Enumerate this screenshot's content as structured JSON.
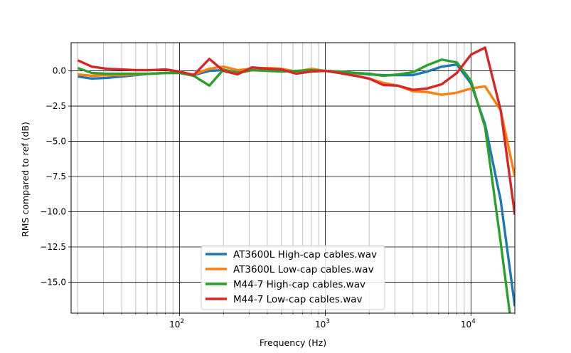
{
  "chart_data": {
    "type": "line",
    "title": "",
    "xlabel": "Frequency (Hz)",
    "ylabel": "RMS compared to ref (dB)",
    "xscale": "log",
    "xlim": [
      18,
      20000
    ],
    "ylim": [
      -17.2,
      2.0
    ],
    "xticks_major": [
      {
        "value": 100,
        "label": "10",
        "exp": "2"
      },
      {
        "value": 1000,
        "label": "10",
        "exp": "3"
      },
      {
        "value": 10000,
        "label": "10",
        "exp": "4"
      }
    ],
    "yticks": [
      {
        "value": 0.0,
        "label": "0.0"
      },
      {
        "value": -2.5,
        "label": "−2.5"
      },
      {
        "value": -5.0,
        "label": "−5.0"
      },
      {
        "value": -7.5,
        "label": "−7.5"
      },
      {
        "value": -10.0,
        "label": "−10.0"
      },
      {
        "value": -12.5,
        "label": "−12.5"
      },
      {
        "value": -15.0,
        "label": "−15.0"
      }
    ],
    "grid": "major and minor",
    "legend_position": "lower-center",
    "x": [
      20,
      25,
      31.5,
      40,
      50,
      63,
      80,
      100,
      125,
      160,
      200,
      250,
      315,
      400,
      500,
      630,
      800,
      1000,
      1250,
      1600,
      2000,
      2500,
      3150,
      4000,
      5000,
      6300,
      8000,
      10000,
      12500,
      16000,
      20000
    ],
    "series": [
      {
        "name": "AT3600L High-cap cables.wav",
        "color": "#1f77b4",
        "values": [
          -0.4,
          -0.55,
          -0.5,
          -0.4,
          -0.3,
          -0.2,
          -0.15,
          -0.1,
          -0.3,
          0.0,
          0.05,
          -0.1,
          0.1,
          0.05,
          0.0,
          -0.05,
          0.0,
          0.0,
          -0.05,
          -0.15,
          -0.25,
          -0.3,
          -0.3,
          -0.3,
          -0.05,
          0.3,
          0.45,
          -0.9,
          -3.8,
          -9.2,
          -16.7
        ]
      },
      {
        "name": "AT3600L Low-cap cables.wav",
        "color": "#ff7f0e",
        "values": [
          -0.25,
          -0.35,
          -0.3,
          -0.3,
          -0.25,
          -0.2,
          -0.15,
          -0.15,
          -0.25,
          0.15,
          0.3,
          0.05,
          0.15,
          0.2,
          0.15,
          -0.05,
          0.15,
          0.0,
          -0.05,
          -0.3,
          -0.55,
          -0.85,
          -1.05,
          -1.45,
          -1.5,
          -1.7,
          -1.55,
          -1.25,
          -1.1,
          -2.8,
          -7.5
        ]
      },
      {
        "name": "M44-7 High-cap cables.wav",
        "color": "#2ca02c",
        "values": [
          0.2,
          -0.15,
          -0.2,
          -0.2,
          -0.2,
          -0.2,
          -0.15,
          -0.15,
          -0.35,
          -1.05,
          0.1,
          -0.15,
          0.05,
          0.0,
          -0.05,
          0.0,
          0.05,
          0.0,
          -0.05,
          -0.15,
          -0.2,
          -0.35,
          -0.25,
          -0.1,
          0.4,
          0.8,
          0.6,
          -0.7,
          -4.0,
          -12.2,
          -20.0
        ]
      },
      {
        "name": "M44-7 Low-cap cables.wav",
        "color": "#d62728",
        "values": [
          0.75,
          0.3,
          0.15,
          0.1,
          0.05,
          0.05,
          0.1,
          -0.05,
          -0.3,
          0.85,
          0.0,
          -0.25,
          0.25,
          0.15,
          0.1,
          -0.2,
          -0.05,
          0.0,
          -0.15,
          -0.35,
          -0.55,
          -1.0,
          -1.05,
          -1.35,
          -1.25,
          -0.95,
          -0.15,
          1.15,
          1.65,
          -2.8,
          -10.2
        ]
      }
    ]
  }
}
